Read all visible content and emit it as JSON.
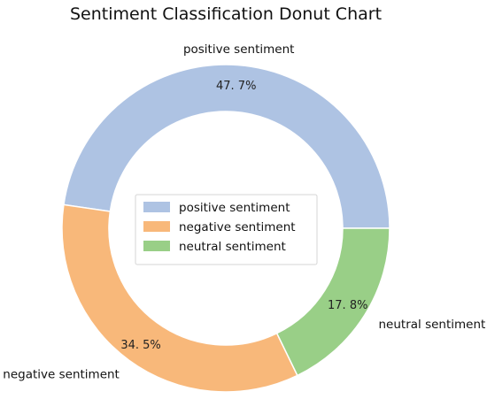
{
  "chart_data": {
    "type": "pie",
    "title": "Sentiment Classification Donut Chart",
    "categories": [
      "positive sentiment",
      "negative sentiment",
      "neutral sentiment"
    ],
    "values": [
      47.7,
      34.5,
      17.8
    ],
    "value_labels": [
      "47. 7%",
      "34. 5%",
      "17. 8%"
    ],
    "colors": [
      "#aec3e3",
      "#f8b87a",
      "#99cf87"
    ],
    "donut": true,
    "legend": {
      "placement": "center",
      "entries": [
        "positive sentiment",
        "negative sentiment",
        "neutral sentiment"
      ]
    }
  }
}
